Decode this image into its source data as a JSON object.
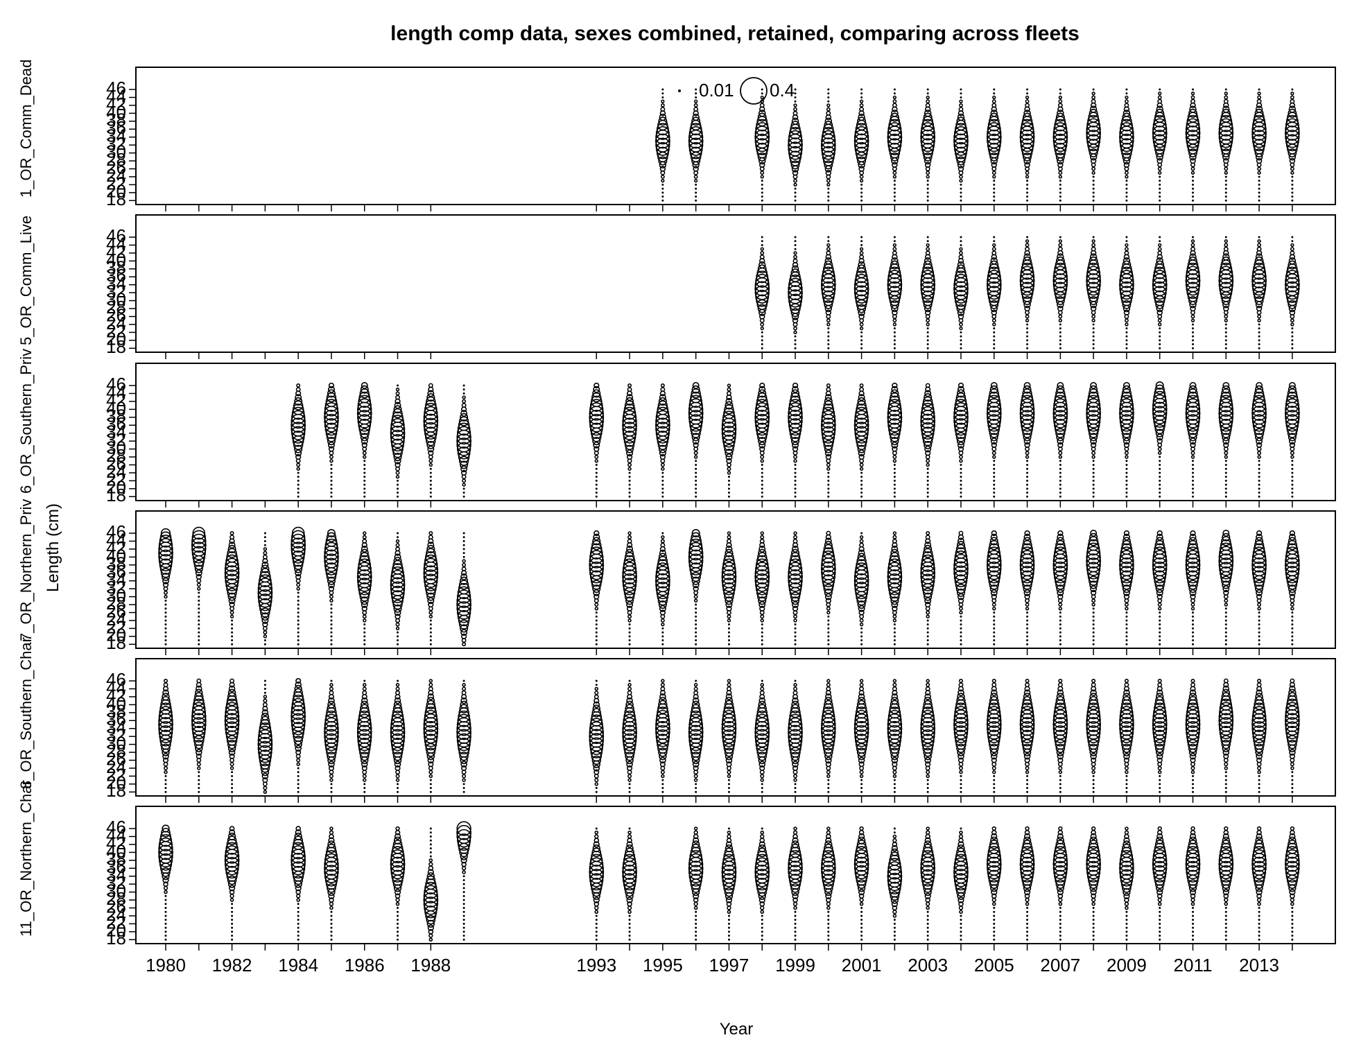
{
  "chart_data": {
    "type": "bubble",
    "title": "length comp data, sexes combined, retained, comparing across fleets",
    "xlabel": "Year",
    "ylabel": "Length (cm)",
    "xlim": [
      1979.1,
      2015.3
    ],
    "ylim": [
      17,
      51.6
    ],
    "x_ticks": [
      1980,
      1981,
      1982,
      1983,
      1984,
      1985,
      1986,
      1987,
      1988,
      1993,
      1994,
      1995,
      1996,
      1997,
      1998,
      1999,
      2000,
      2001,
      2002,
      2003,
      2004,
      2005,
      2006,
      2007,
      2008,
      2009,
      2010,
      2011,
      2012,
      2013,
      2014
    ],
    "x_tick_labels": [
      "1980",
      "1982",
      "1984",
      "1986",
      "1988",
      "1993",
      "1995",
      "1997",
      "1999",
      "2001",
      "2003",
      "2005",
      "2007",
      "2009",
      "2011",
      "2013"
    ],
    "y_ticks": [
      18,
      20,
      22,
      24,
      26,
      28,
      30,
      32,
      34,
      36,
      38,
      40,
      42,
      44,
      46
    ],
    "y_tick_labels": [
      "18",
      "20",
      "22",
      "24",
      "26",
      "28",
      "30",
      "32",
      "34",
      "36",
      "38",
      "40",
      "42",
      "44",
      "46"
    ],
    "legend": {
      "position": "top-center",
      "values": [
        0.01,
        0.4
      ],
      "labels": [
        "0.01",
        "0.4"
      ]
    },
    "fleet_labels": [
      "1_OR_Comm_Dead",
      "5_OR_Comm_Live",
      "6_OR_Southern_Priv",
      "7_OR_Northern_Priv",
      "8_OR_Southern_Char",
      "11_OR_Northern_Char"
    ],
    "panels": [
      {
        "fleet": "1_OR_Comm_Dead",
        "mean_length": 33,
        "sd_length": 3.2,
        "years": [
          [
            1995,
            33
          ],
          [
            1996,
            33
          ],
          [
            1998,
            34
          ],
          [
            1999,
            32
          ],
          [
            2000,
            32
          ],
          [
            2001,
            33
          ],
          [
            2002,
            34
          ],
          [
            2003,
            34
          ],
          [
            2004,
            33
          ],
          [
            2005,
            34
          ],
          [
            2006,
            34
          ],
          [
            2007,
            34
          ],
          [
            2008,
            35
          ],
          [
            2009,
            34
          ],
          [
            2010,
            35
          ],
          [
            2011,
            35
          ],
          [
            2012,
            35
          ],
          [
            2013,
            35
          ],
          [
            2014,
            35
          ]
        ]
      },
      {
        "fleet": "5_OR_Comm_Live",
        "mean_length": 33,
        "sd_length": 3.2,
        "years": [
          [
            1998,
            33
          ],
          [
            1999,
            32
          ],
          [
            2000,
            34
          ],
          [
            2001,
            33
          ],
          [
            2002,
            34
          ],
          [
            2003,
            34
          ],
          [
            2004,
            33
          ],
          [
            2005,
            34
          ],
          [
            2006,
            35
          ],
          [
            2007,
            35
          ],
          [
            2008,
            35
          ],
          [
            2009,
            34
          ],
          [
            2010,
            34
          ],
          [
            2011,
            35
          ],
          [
            2012,
            35
          ],
          [
            2013,
            35
          ],
          [
            2014,
            34
          ]
        ]
      },
      {
        "fleet": "6_OR_Southern_Priv",
        "mean_length": 37,
        "sd_length": 3.6,
        "years": [
          [
            1984,
            36
          ],
          [
            1985,
            38
          ],
          [
            1986,
            39
          ],
          [
            1987,
            34
          ],
          [
            1988,
            37
          ],
          [
            1989,
            32
          ],
          [
            1993,
            38
          ],
          [
            1994,
            36
          ],
          [
            1995,
            36
          ],
          [
            1996,
            39
          ],
          [
            1997,
            35
          ],
          [
            1998,
            38
          ],
          [
            1999,
            38
          ],
          [
            2000,
            36
          ],
          [
            2001,
            36
          ],
          [
            2002,
            38
          ],
          [
            2003,
            37
          ],
          [
            2004,
            38
          ],
          [
            2005,
            39
          ],
          [
            2006,
            39
          ],
          [
            2007,
            39
          ],
          [
            2008,
            39
          ],
          [
            2009,
            39
          ],
          [
            2010,
            40
          ],
          [
            2011,
            39
          ],
          [
            2012,
            39
          ],
          [
            2013,
            39
          ],
          [
            2014,
            39
          ]
        ]
      },
      {
        "fleet": "7_OR_Northern_Priv",
        "mean_length": 35,
        "sd_length": 3.6,
        "years": [
          [
            1980,
            41
          ],
          [
            1981,
            43
          ],
          [
            1982,
            36
          ],
          [
            1983,
            31
          ],
          [
            1984,
            43
          ],
          [
            1985,
            40
          ],
          [
            1986,
            35
          ],
          [
            1987,
            33
          ],
          [
            1988,
            36
          ],
          [
            1989,
            28
          ],
          [
            1993,
            38
          ],
          [
            1994,
            35
          ],
          [
            1995,
            34
          ],
          [
            1996,
            40
          ],
          [
            1997,
            35
          ],
          [
            1998,
            35
          ],
          [
            1999,
            35
          ],
          [
            2000,
            37
          ],
          [
            2001,
            34
          ],
          [
            2002,
            35
          ],
          [
            2003,
            36
          ],
          [
            2004,
            37
          ],
          [
            2005,
            38
          ],
          [
            2006,
            38
          ],
          [
            2007,
            38
          ],
          [
            2008,
            39
          ],
          [
            2009,
            38
          ],
          [
            2010,
            38
          ],
          [
            2011,
            38
          ],
          [
            2012,
            39
          ],
          [
            2013,
            38
          ],
          [
            2014,
            38
          ]
        ]
      },
      {
        "fleet": "8_OR_Southern_Char",
        "mean_length": 34,
        "sd_length": 4.0,
        "years": [
          [
            1980,
            35
          ],
          [
            1981,
            36
          ],
          [
            1982,
            36
          ],
          [
            1983,
            30
          ],
          [
            1984,
            37
          ],
          [
            1985,
            33
          ],
          [
            1986,
            33
          ],
          [
            1987,
            33
          ],
          [
            1988,
            34
          ],
          [
            1989,
            33
          ],
          [
            1993,
            32
          ],
          [
            1994,
            33
          ],
          [
            1995,
            34
          ],
          [
            1996,
            33
          ],
          [
            1997,
            34
          ],
          [
            1998,
            33
          ],
          [
            1999,
            33
          ],
          [
            2000,
            34
          ],
          [
            2001,
            34
          ],
          [
            2002,
            34
          ],
          [
            2003,
            34
          ],
          [
            2004,
            35
          ],
          [
            2005,
            35
          ],
          [
            2006,
            35
          ],
          [
            2007,
            35
          ],
          [
            2008,
            35
          ],
          [
            2009,
            35
          ],
          [
            2010,
            35
          ],
          [
            2011,
            35
          ],
          [
            2012,
            36
          ],
          [
            2013,
            35
          ],
          [
            2014,
            36
          ]
        ]
      },
      {
        "fleet": "11_OR_Northern_Char",
        "mean_length": 35,
        "sd_length": 3.4,
        "years": [
          [
            1980,
            40
          ],
          [
            1982,
            38
          ],
          [
            1984,
            38
          ],
          [
            1985,
            36
          ],
          [
            1987,
            37
          ],
          [
            1988,
            28
          ],
          [
            1989,
            45
          ],
          [
            1993,
            35
          ],
          [
            1994,
            35
          ],
          [
            1996,
            36
          ],
          [
            1997,
            35
          ],
          [
            1998,
            35
          ],
          [
            1999,
            36
          ],
          [
            2000,
            36
          ],
          [
            2001,
            37
          ],
          [
            2002,
            34
          ],
          [
            2003,
            36
          ],
          [
            2004,
            35
          ],
          [
            2005,
            37
          ],
          [
            2006,
            37
          ],
          [
            2007,
            37
          ],
          [
            2008,
            37
          ],
          [
            2009,
            36
          ],
          [
            2010,
            37
          ],
          [
            2011,
            37
          ],
          [
            2012,
            37
          ],
          [
            2013,
            37
          ],
          [
            2014,
            37
          ]
        ]
      }
    ]
  }
}
